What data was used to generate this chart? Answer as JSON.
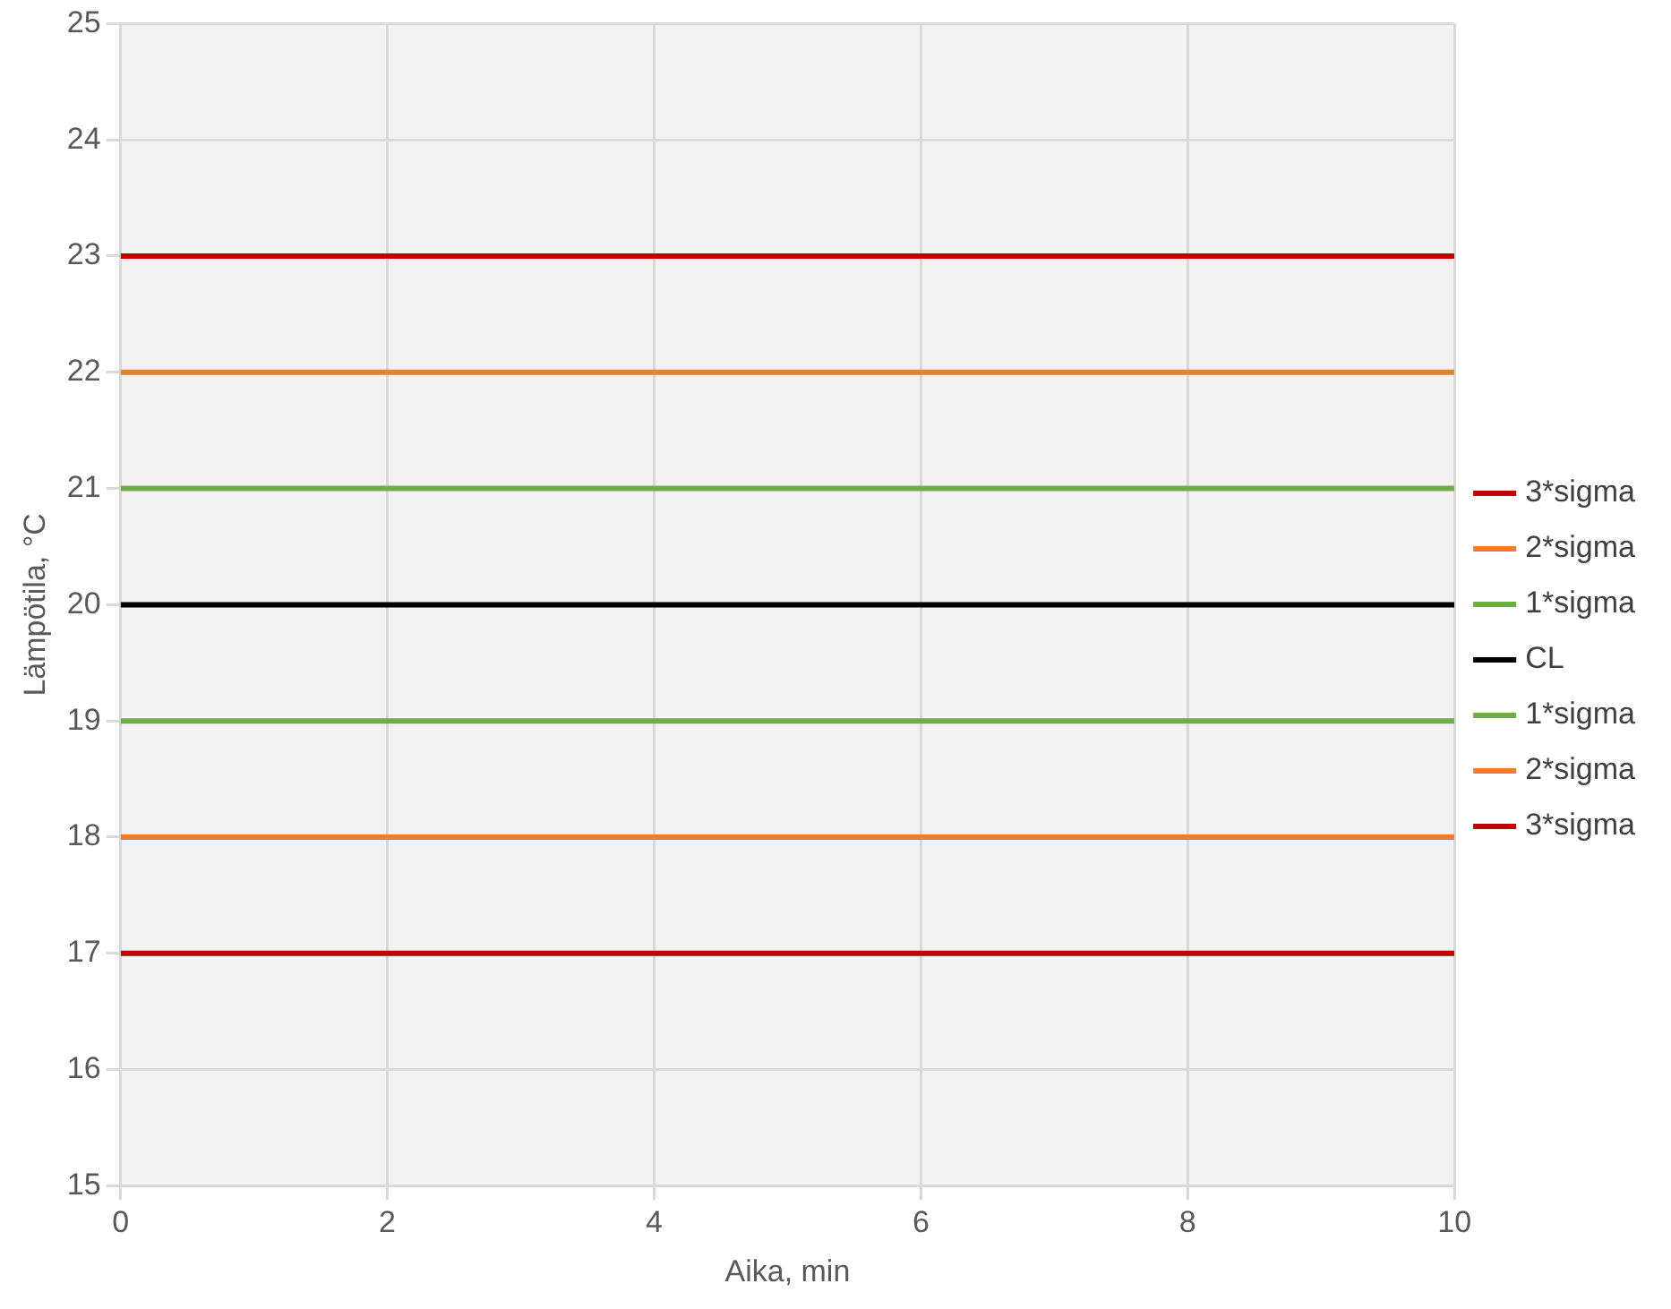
{
  "chart_data": {
    "type": "line",
    "xlabel": "Aika, min",
    "ylabel": "Lämpötila, °C",
    "xlim": [
      0,
      10
    ],
    "xticks": [
      0,
      2,
      4,
      6,
      8,
      10
    ],
    "ylim": [
      15,
      25
    ],
    "yticks": [
      15,
      16,
      17,
      18,
      19,
      20,
      21,
      22,
      23,
      24,
      25
    ],
    "grid": true,
    "legend": "right",
    "marker": "none",
    "line_style": "solid",
    "x": [
      0,
      10
    ],
    "series": [
      {
        "name": "3*sigma",
        "color": "#c00000",
        "values": [
          23,
          23
        ]
      },
      {
        "name": "2*sigma",
        "color": "#ed7d31",
        "values": [
          22,
          22
        ]
      },
      {
        "name": "1*sigma",
        "color": "#70ad47",
        "values": [
          21,
          21
        ]
      },
      {
        "name": "CL",
        "color": "#000000",
        "values": [
          20,
          20
        ]
      },
      {
        "name": "1*sigma",
        "color": "#70ad47",
        "values": [
          19,
          19
        ]
      },
      {
        "name": "2*sigma",
        "color": "#ed7d31",
        "values": [
          18,
          18
        ]
      },
      {
        "name": "3*sigma",
        "color": "#c00000",
        "values": [
          17,
          17
        ]
      }
    ]
  }
}
